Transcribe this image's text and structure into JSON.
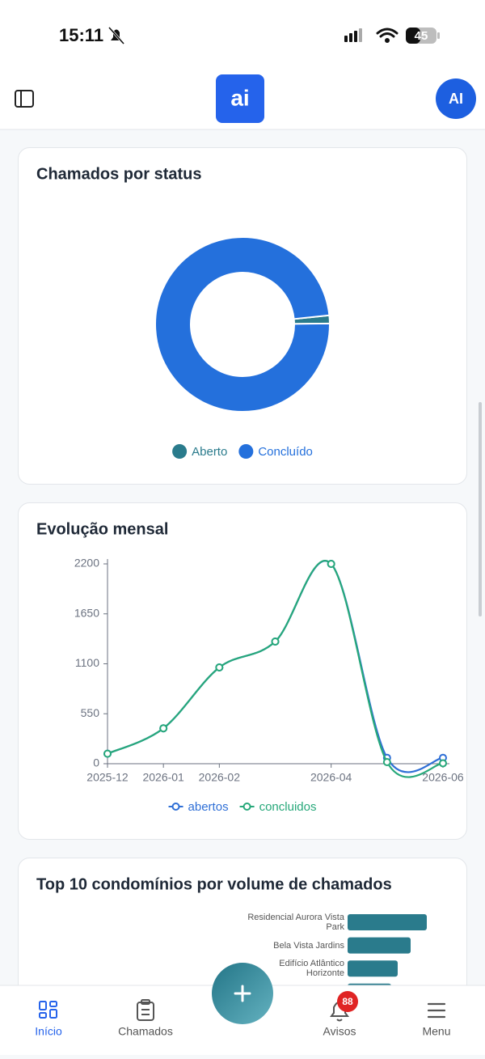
{
  "status_bar": {
    "time": "15:11",
    "battery": "45"
  },
  "header": {
    "logo": "ai",
    "avatar": "AI"
  },
  "chart_data": [
    {
      "type": "pie",
      "title": "Chamados por status",
      "categories": [
        "Aberto",
        "Concluído"
      ],
      "values": [
        1.5,
        98.5
      ],
      "colors": [
        "#2a7b8c",
        "#2470dc"
      ],
      "legend": "bottom"
    },
    {
      "type": "line",
      "title": "Evolução mensal",
      "x": [
        "2025-12",
        "2026-01",
        "2026-02",
        null,
        "2026-04",
        null,
        "2026-06"
      ],
      "series": [
        {
          "name": "abertos",
          "color": "#2f6fd6",
          "values": [
            110,
            390,
            1060,
            1345,
            2200,
            65,
            65
          ]
        },
        {
          "name": "concluidos",
          "color": "#27a87a",
          "values": [
            110,
            390,
            1060,
            1345,
            2200,
            18,
            5
          ]
        }
      ],
      "ylim": [
        0,
        2200
      ],
      "yticks": [
        0,
        550,
        1100,
        1650,
        2200
      ],
      "legend": "bottom"
    },
    {
      "type": "bar",
      "orientation": "horizontal",
      "title": "Top 10 condomínios por volume de chamados",
      "categories": [
        "Residencial Aurora Vista Park",
        "Bela Vista Jardins",
        "Edifício Atlântico Horizonte",
        null
      ],
      "values": [
        98,
        78,
        62,
        54
      ],
      "color": "#2a7b8c"
    }
  ],
  "nav": {
    "items": [
      "Início",
      "Chamados",
      "Avisos",
      "Menu"
    ],
    "badge": "88"
  }
}
